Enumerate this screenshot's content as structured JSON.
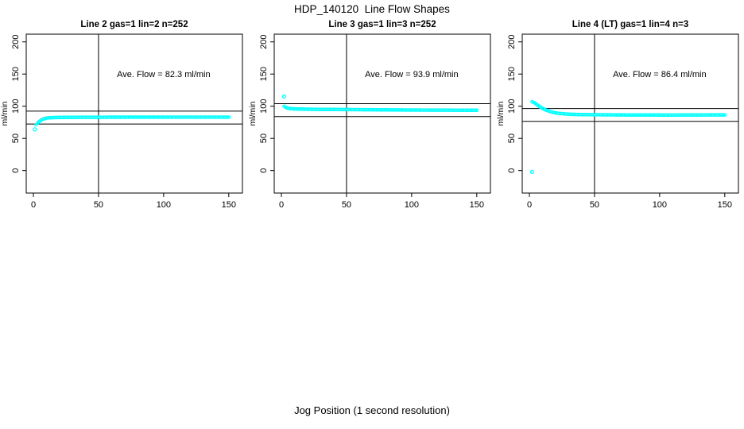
{
  "figure": {
    "title": "HDP_140120  Line Flow Shapes",
    "xlabel": "Jog Position (1 second resolution)"
  },
  "colors": {
    "background": "#ffffff",
    "axis": "#000000",
    "points": "#00ffff"
  },
  "chart_data": [
    {
      "type": "scatter",
      "title": "Line 2 gas=1 lin=2 n=252",
      "params": {
        "line": 2,
        "gas": 1,
        "lin": 2,
        "n": 252
      },
      "ylabel": "ml/min",
      "annotation": "Ave. Flow =  82.3  ml/min",
      "ave_flow_ml_min": 82.3,
      "xticks": [
        0,
        50,
        100,
        150
      ],
      "yticks": [
        0,
        50,
        100,
        150,
        200
      ],
      "xlim": [
        -5.5,
        160.5
      ],
      "ylim": [
        -35,
        212
      ],
      "grid": false,
      "vline_x": 50,
      "hlines": [
        72.3,
        92.3
      ],
      "marker": "open-circle",
      "marker_color": "#00ffff",
      "x_step": 1,
      "outlier_points": [
        [
          1,
          64
        ]
      ],
      "series_anchor_points": [
        [
          2,
          71
        ],
        [
          3,
          73.5
        ],
        [
          4,
          75.5
        ],
        [
          5,
          77
        ],
        [
          6,
          78.5
        ],
        [
          7,
          79.5
        ],
        [
          8,
          80.5
        ],
        [
          9,
          81
        ],
        [
          10,
          81.5
        ],
        [
          12,
          82
        ],
        [
          15,
          82.3
        ],
        [
          20,
          82.5
        ],
        [
          30,
          82.7
        ],
        [
          40,
          82.8
        ],
        [
          50,
          82.8
        ],
        [
          60,
          82.9
        ],
        [
          75,
          83
        ],
        [
          90,
          83
        ],
        [
          105,
          83
        ],
        [
          120,
          83
        ],
        [
          135,
          83
        ],
        [
          150,
          83
        ]
      ]
    },
    {
      "type": "scatter",
      "title": "Line 3 gas=1 lin=3 n=252",
      "params": {
        "line": 3,
        "gas": 1,
        "lin": 3,
        "n": 252
      },
      "ylabel": "ml/min",
      "annotation": "Ave. Flow =  93.9  ml/min",
      "ave_flow_ml_min": 93.9,
      "xticks": [
        0,
        50,
        100,
        150
      ],
      "yticks": [
        0,
        50,
        100,
        150,
        200
      ],
      "xlim": [
        -5.5,
        160.5
      ],
      "ylim": [
        -35,
        212
      ],
      "grid": false,
      "vline_x": 50,
      "hlines": [
        83.9,
        103.9
      ],
      "marker": "open-circle",
      "marker_color": "#00ffff",
      "x_step": 1,
      "outlier_points": [
        [
          2,
          115
        ]
      ],
      "series_anchor_points": [
        [
          2,
          100
        ],
        [
          3,
          98.5
        ],
        [
          4,
          97.5
        ],
        [
          5,
          97
        ],
        [
          6,
          96.5
        ],
        [
          8,
          96
        ],
        [
          10,
          95.8
        ],
        [
          15,
          95.5
        ],
        [
          20,
          95.3
        ],
        [
          30,
          95
        ],
        [
          40,
          95
        ],
        [
          50,
          94.8
        ],
        [
          60,
          94.6
        ],
        [
          75,
          94.4
        ],
        [
          90,
          94.2
        ],
        [
          105,
          94
        ],
        [
          120,
          93.9
        ],
        [
          135,
          93.8
        ],
        [
          150,
          93.7
        ]
      ]
    },
    {
      "type": "scatter",
      "title": "Line 4 (LT) gas=1 lin=4 n=3",
      "params": {
        "line": 4,
        "line_note": "LT",
        "gas": 1,
        "lin": 4,
        "n": 3
      },
      "ylabel": "ml/min",
      "annotation": "Ave. Flow =  86.4  ml/min",
      "ave_flow_ml_min": 86.4,
      "xticks": [
        0,
        50,
        100,
        150
      ],
      "yticks": [
        0,
        50,
        100,
        150,
        200
      ],
      "xlim": [
        -5.5,
        160.5
      ],
      "ylim": [
        -35,
        212
      ],
      "grid": false,
      "vline_x": 50,
      "hlines": [
        76.4,
        96.4
      ],
      "marker": "open-circle",
      "marker_color": "#00ffff",
      "x_step": 1,
      "outlier_points": [
        [
          2,
          -2
        ]
      ],
      "series_anchor_points": [
        [
          2,
          107
        ],
        [
          3,
          106
        ],
        [
          4,
          105
        ],
        [
          5,
          103.5
        ],
        [
          6,
          102
        ],
        [
          7,
          100.5
        ],
        [
          8,
          99
        ],
        [
          9,
          98
        ],
        [
          10,
          96.5
        ],
        [
          12,
          94.5
        ],
        [
          14,
          93
        ],
        [
          16,
          91.5
        ],
        [
          18,
          90.5
        ],
        [
          20,
          89.5
        ],
        [
          23,
          88.8
        ],
        [
          26,
          88.2
        ],
        [
          30,
          87.6
        ],
        [
          35,
          87.2
        ],
        [
          40,
          87
        ],
        [
          50,
          86.8
        ],
        [
          60,
          86.6
        ],
        [
          75,
          86.4
        ],
        [
          90,
          86.4
        ],
        [
          105,
          86.2
        ],
        [
          120,
          86.3
        ],
        [
          135,
          86.4
        ],
        [
          150,
          86.5
        ]
      ]
    }
  ]
}
